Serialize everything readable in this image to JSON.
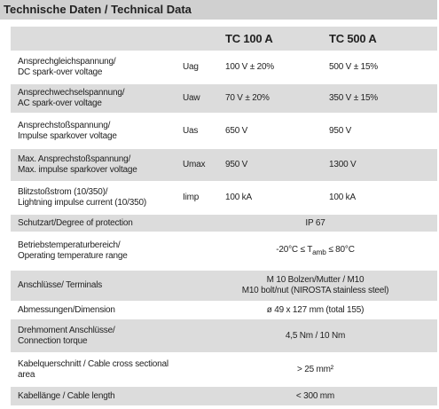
{
  "header": {
    "title": "Technische Daten / Technical Data"
  },
  "table": {
    "columns": [
      "TC 100 A",
      "TC 500 A"
    ],
    "rows": [
      {
        "label": [
          "Ansprechgleichspannung/",
          "DC spark-over voltage"
        ],
        "symbol": "Uag",
        "values": [
          "100 V ± 20%",
          "500 V ± 15%"
        ]
      },
      {
        "label": [
          "Ansprechwechselspannung/",
          "AC spark-over voltage"
        ],
        "symbol": "Uaw",
        "values": [
          "70 V ± 20%",
          "350 V ± 15%"
        ]
      },
      {
        "label": [
          "Ansprechstoßspannung/",
          "Impulse sparkover voltage"
        ],
        "symbol": "Uas",
        "values": [
          "650 V",
          "950 V"
        ]
      },
      {
        "label": [
          "Max. Ansprechstoßspannung/",
          "Max. impulse sparkover voltage"
        ],
        "symbol": "Umax",
        "values": [
          "950 V",
          "1300 V"
        ]
      },
      {
        "label": [
          "Blitzstoßstrom (10/350)/",
          "Lightning impulse current (10/350)"
        ],
        "symbol": "Iimp",
        "values": [
          "100 kA",
          "100 kA"
        ]
      },
      {
        "label": [
          "Schutzart/Degree of protection"
        ],
        "value": [
          "IP 67"
        ]
      },
      {
        "label": [
          "Betriebstemperaturbereich/",
          "Operating temperature range"
        ],
        "formula": {
          "pre": "-20°C ≤ T",
          "sub": "amb",
          "post": " ≤ 80°C"
        }
      },
      {
        "label": [
          "Anschlüsse/ Terminals"
        ],
        "value": [
          "M 10 Bolzen/Mutter / M10",
          "M10 bolt/nut (NIROSTA stainless steel)"
        ]
      },
      {
        "label": [
          "Abmessungen/Dimension"
        ],
        "value": [
          "ø 49 x 127 mm (total 155)"
        ]
      },
      {
        "label": [
          "Drehmoment Anschlüsse/",
          "Connection torque"
        ],
        "value": [
          "4,5 Nm / 10 Nm"
        ]
      },
      {
        "label": [
          "Kabelquerschnitt / Cable cross sectional",
          "area"
        ],
        "value": [
          "> 25 mm²"
        ]
      },
      {
        "label": [
          "Kabellänge / Cable length"
        ],
        "value": [
          "< 300 mm"
        ]
      }
    ]
  }
}
